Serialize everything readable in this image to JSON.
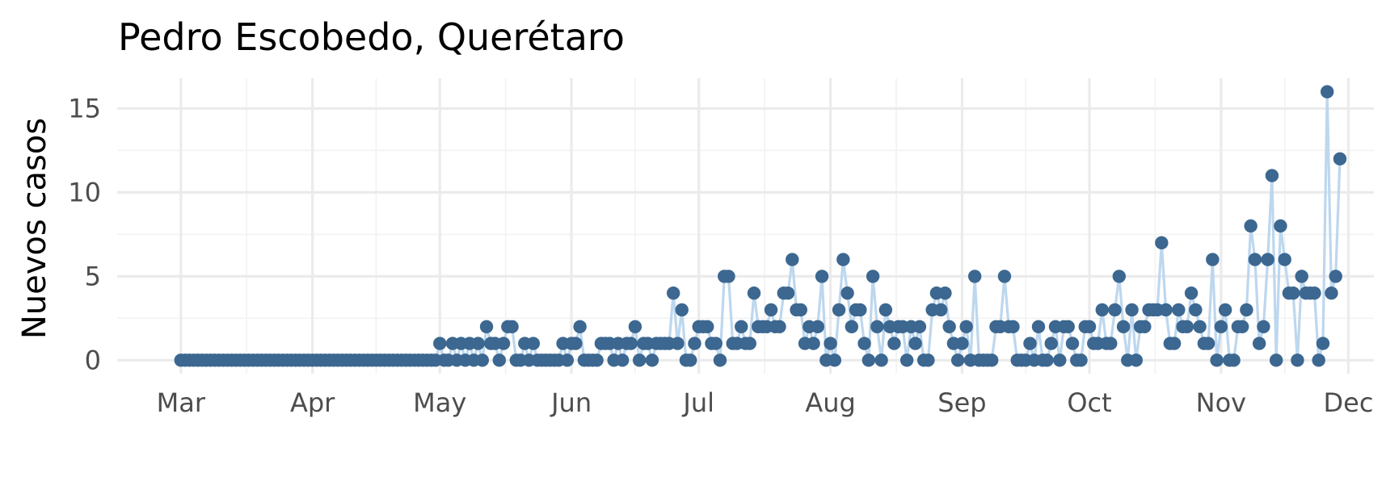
{
  "chart_data": {
    "type": "line",
    "title": "Pedro Escobedo, Querétaro",
    "xlabel": "",
    "ylabel": "Nuevos casos",
    "x_axis": {
      "type": "date",
      "start": "2020-03-01",
      "end": "2020-12-01",
      "limits": [
        "2020-02-15",
        "2020-12-07"
      ],
      "ticks": [
        {
          "date": "2020-03-01",
          "label": "Mar"
        },
        {
          "date": "2020-04-01",
          "label": "Apr"
        },
        {
          "date": "2020-05-01",
          "label": "May"
        },
        {
          "date": "2020-06-01",
          "label": "Jun"
        },
        {
          "date": "2020-07-01",
          "label": "Jul"
        },
        {
          "date": "2020-08-01",
          "label": "Aug"
        },
        {
          "date": "2020-09-01",
          "label": "Sep"
        },
        {
          "date": "2020-10-01",
          "label": "Oct"
        },
        {
          "date": "2020-11-01",
          "label": "Nov"
        },
        {
          "date": "2020-12-01",
          "label": "Dec"
        }
      ]
    },
    "y_axis": {
      "limits": [
        -0.8,
        16.8
      ],
      "ticks": [
        0,
        5,
        10,
        15
      ],
      "minor_ticks": [
        2.5,
        7.5,
        12.5
      ]
    },
    "grid": true,
    "legend": "none",
    "colors": {
      "line": "#bdd7ee",
      "points": "#3c6790",
      "major_grid": "#ebebeb",
      "minor_grid": "#f2f2f2",
      "title": "#000000",
      "tick_labels": "#4d4d4d"
    },
    "series": [
      {
        "start_date": "2020-03-01",
        "values": [
          0,
          0,
          0,
          0,
          0,
          0,
          0,
          0,
          0,
          0,
          0,
          0,
          0,
          0,
          0,
          0,
          0,
          0,
          0,
          0,
          0,
          0,
          0,
          0,
          0,
          0,
          0,
          0,
          0,
          0,
          0,
          0,
          0,
          0,
          0,
          0,
          0,
          0,
          0,
          0,
          0,
          0,
          0,
          0,
          0,
          0,
          0,
          0,
          0,
          0,
          0,
          0,
          0,
          0,
          0,
          0,
          0,
          0,
          0,
          0,
          0,
          1,
          0,
          0,
          1,
          0,
          1,
          0,
          1,
          0,
          1,
          0,
          2,
          1,
          1,
          0,
          1,
          2,
          2,
          0,
          0,
          1,
          0,
          1,
          0,
          0,
          0,
          0,
          0,
          0,
          1,
          0,
          1,
          1,
          2,
          0,
          0,
          0,
          0,
          1,
          1,
          1,
          0,
          1,
          0,
          1,
          1,
          2,
          0,
          1,
          1,
          0,
          1,
          1,
          1,
          1,
          4,
          1,
          3,
          0,
          0,
          1,
          2,
          2,
          2,
          1,
          1,
          0,
          5,
          5,
          1,
          1,
          2,
          1,
          1,
          4,
          2,
          2,
          2,
          3,
          2,
          2,
          4,
          4,
          6,
          3,
          3,
          1,
          2,
          1,
          2,
          5,
          0,
          1,
          0,
          3,
          6,
          4,
          2,
          3,
          3,
          1,
          0,
          5,
          2,
          0,
          3,
          2,
          1,
          2,
          2,
          0,
          2,
          1,
          2,
          0,
          0,
          3,
          4,
          3,
          4,
          2,
          1,
          0,
          1,
          2,
          0,
          5,
          0,
          0,
          0,
          0,
          2,
          2,
          5,
          2,
          2,
          0,
          0,
          0,
          1,
          0,
          2,
          0,
          0,
          1,
          2,
          0,
          2,
          2,
          1,
          0,
          0,
          2,
          2,
          1,
          1,
          3,
          1,
          1,
          3,
          5,
          2,
          0,
          3,
          0,
          2,
          2,
          3,
          3,
          3,
          7,
          3,
          1,
          1,
          3,
          2,
          2,
          4,
          3,
          2,
          1,
          1,
          6,
          0,
          2,
          3,
          0,
          0,
          2,
          2,
          3,
          8,
          6,
          1,
          2,
          6,
          11,
          0,
          8,
          6,
          4,
          4,
          0,
          5,
          4,
          4,
          4,
          0,
          1,
          16,
          4,
          5,
          12
        ]
      }
    ]
  }
}
